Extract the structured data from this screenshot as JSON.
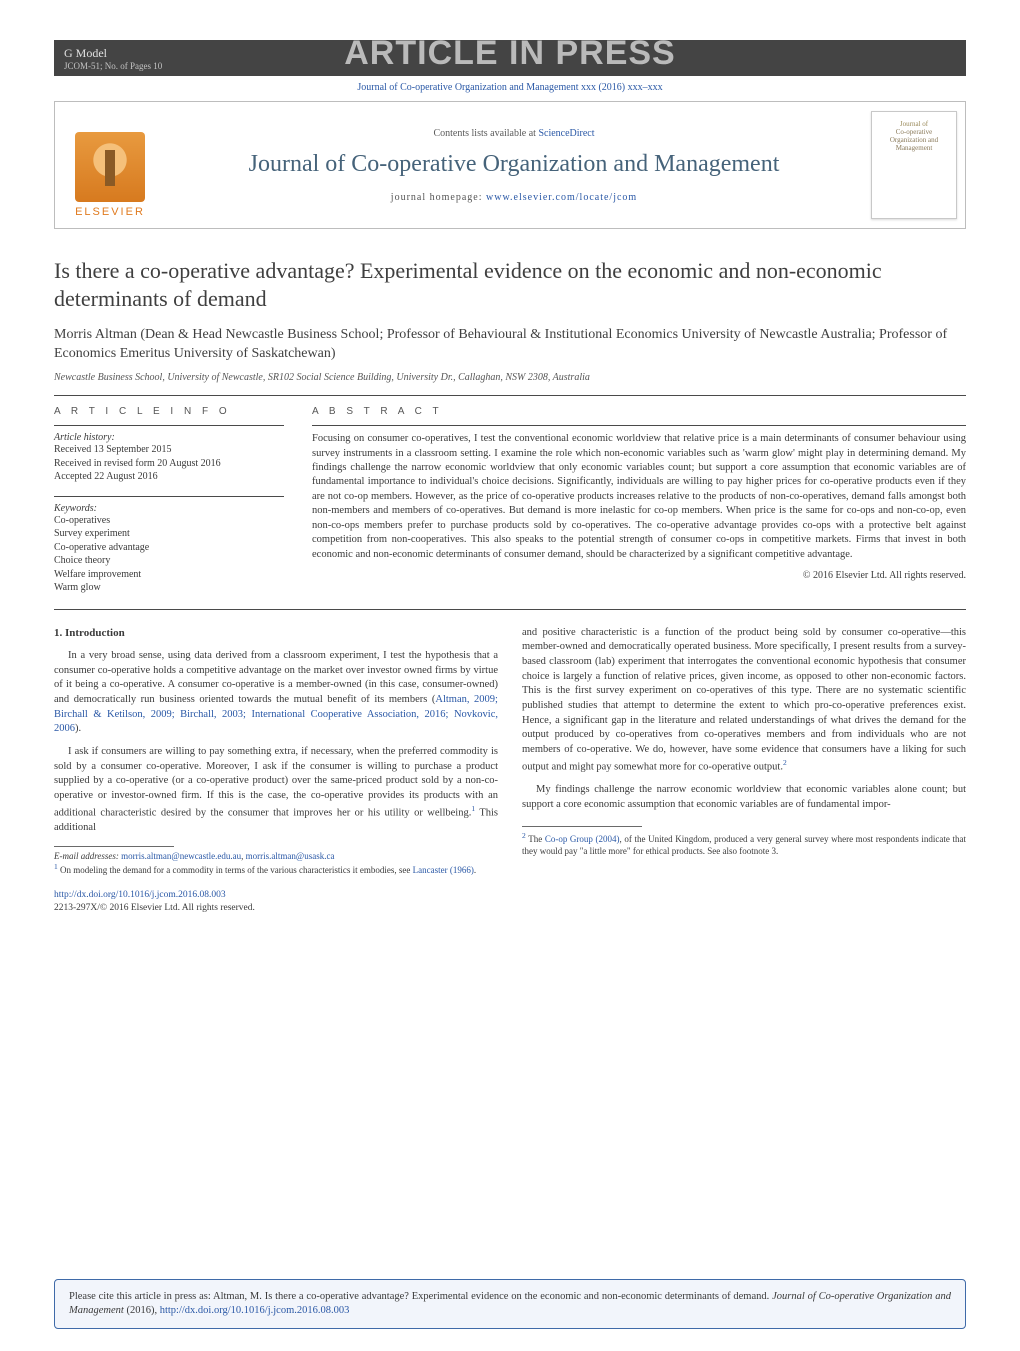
{
  "gmodel": {
    "line1": "G Model",
    "line2": "JCOM-51;   No. of Pages 10"
  },
  "aip_banner": "ARTICLE IN PRESS",
  "journal_ref_line": "Journal of Co-operative Organization and Management xxx (2016) xxx–xxx",
  "header": {
    "contents_prefix": "Contents lists available at ",
    "contents_link": "ScienceDirect",
    "journal_title": "Journal of Co-operative Organization and Management",
    "homepage_prefix": "journal homepage: ",
    "homepage_link": "www.elsevier.com/locate/jcom",
    "publisher_label": "ELSEVIER",
    "cover_line1": "Journal of",
    "cover_line2": "Co-operative",
    "cover_line3": "Organization and",
    "cover_line4": "Management"
  },
  "article": {
    "title": "Is there a co-operative advantage? Experimental evidence on the economic and non-economic determinants of demand",
    "authors": "Morris Altman (Dean & Head Newcastle Business School; Professor of Behavioural & Institutional Economics University of Newcastle Australia; Professor of Economics Emeritus University of Saskatchewan)",
    "affiliation": "Newcastle Business School, University of Newcastle, SR102 Social Science Building, University Dr., Callaghan, NSW 2308, Australia"
  },
  "info": {
    "head": "A R T I C L E   I N F O",
    "history_label": "Article history:",
    "history": [
      "Received 13 September 2015",
      "Received in revised form 20 August 2016",
      "Accepted 22 August 2016"
    ],
    "keywords_label": "Keywords:",
    "keywords": [
      "Co-operatives",
      "Survey experiment",
      "Co-operative advantage",
      "Choice theory",
      "Welfare improvement",
      "Warm glow"
    ]
  },
  "abstract": {
    "head": "A B S T R A C T",
    "body": "Focusing on consumer co-operatives, I test the conventional economic worldview that relative price is a main determinants of consumer behaviour using survey instruments in a classroom setting. I examine the role which non-economic variables such as 'warm glow' might play in determining demand. My findings challenge the narrow economic worldview that only economic variables count; but support a core assumption that economic variables are of fundamental importance to individual's choice decisions. Significantly, individuals are willing to pay higher prices for co-operative products even if they are not co-op members. However, as the price of co-operative products increases relative to the products of non-co-operatives, demand falls amongst both non-members and members of co-operatives. But demand is more inelastic for co-op members. When price is the same for co-ops and non-co-op, even non-co-ops members prefer to purchase products sold by co-operatives. The co-operative advantage provides co-ops with a protective belt against competition from non-cooperatives. This also speaks to the potential strength of consumer co-ops in competitive markets. Firms that invest in both economic and non-economic determinants of consumer demand, should be characterized by a significant competitive advantage.",
    "copyright": "© 2016 Elsevier Ltd. All rights reserved."
  },
  "body": {
    "sec1_head": "1.  Introduction",
    "col1_p1": "In a very broad sense, using data derived from a classroom experiment, I test the hypothesis that a consumer co-operative holds a competitive advantage on the market over investor owned firms by virtue of it being a co-operative. A consumer co-operative is a member-owned (in this case, consumer-owned) and democratically run business oriented towards the mutual benefit of its members (",
    "col1_p1_refs": "Altman, 2009; Birchall & Ketilson, 2009; Birchall, 2003; International Cooperative Association, 2016; Novkovic, 2006",
    "col1_p1_tail": ").",
    "col1_p2a": "I ask if consumers are willing to pay something extra, if necessary, when the preferred commodity is sold by a consumer co-operative. Moreover, I ask if the consumer is willing to purchase a product supplied by a co-operative (or a co-operative product) over the same-priced product sold by a non-co-operative or investor-owned firm. If this is the case, the co-operative provides its products with an additional characteristic desired by the consumer that improves her or his utility or wellbeing.",
    "col1_p2_sup": "1",
    "col1_p2b": " This additional",
    "col2_p1": "and positive characteristic is a function of the product being sold by consumer co-operative—this member-owned and democratically operated business. More specifically, I present results from a survey-based classroom (lab) experiment that interrogates the conventional economic hypothesis that consumer choice is largely a function of relative prices, given income, as opposed to other non-economic factors. This is the first survey experiment on co-operatives of this type. There are no systematic scientific published studies that attempt to determine the extent to which pro-co-operative preferences exist. Hence, a significant gap in the literature and related understandings of what drives the demand for the output produced by co-operatives from co-operatives members and from individuals who are not members of co-operative. We do, however, have some evidence that consumers have a liking for such output and might pay somewhat more for co-operative output.",
    "col2_p1_sup": "2",
    "col2_p2": "My findings challenge the narrow economic worldview that economic variables alone count; but support a core economic assumption that economic variables are of fundamental impor-"
  },
  "footnotes": {
    "email_label": "E-mail addresses: ",
    "email1": "morris.altman@newcastle.edu.au",
    "email_sep": ", ",
    "email2": "morris.altman@usask.ca",
    "fn1_num": "1",
    "fn1_a": " On modeling the demand for a commodity in terms of the various characteristics it embodies, see ",
    "fn1_link": "Lancaster (1966)",
    "fn1_b": ".",
    "fn2_num": "2",
    "fn2_a": " The ",
    "fn2_link": "Co-op Group (2004)",
    "fn2_b": ", of the United Kingdom, produced a very general survey where most respondents indicate that they would pay \"a little more\" for ethical products. See also footnote 3."
  },
  "doi": {
    "link": "http://dx.doi.org/10.1016/j.jcom.2016.08.003",
    "issn_line": "2213-297X/© 2016 Elsevier Ltd. All rights reserved."
  },
  "citebox": {
    "pre": "Please cite this article in press as: Altman, M. Is there a co-operative advantage? Experimental evidence on the economic and non-economic determinants of demand. ",
    "journal_ital": "Journal of Co-operative Organization and Management",
    "year": " (2016), ",
    "link": "http://dx.doi.org/10.1016/j.jcom.2016.08.003"
  },
  "colors": {
    "link": "#2a58a6",
    "banner_gray": "#444444",
    "aip_gray": "#bababa",
    "title_blue": "#46637a",
    "border_gray": "#bdbdbd",
    "citebox_bg": "#f2f5fb",
    "citebox_border": "#3f6aa8"
  },
  "typography": {
    "body_pt": 10.5,
    "title_pt": 22,
    "journal_title_pt": 24,
    "aip_pt": 34,
    "authors_pt": 14,
    "meta_pt": 10,
    "footnote_pt": 9
  }
}
